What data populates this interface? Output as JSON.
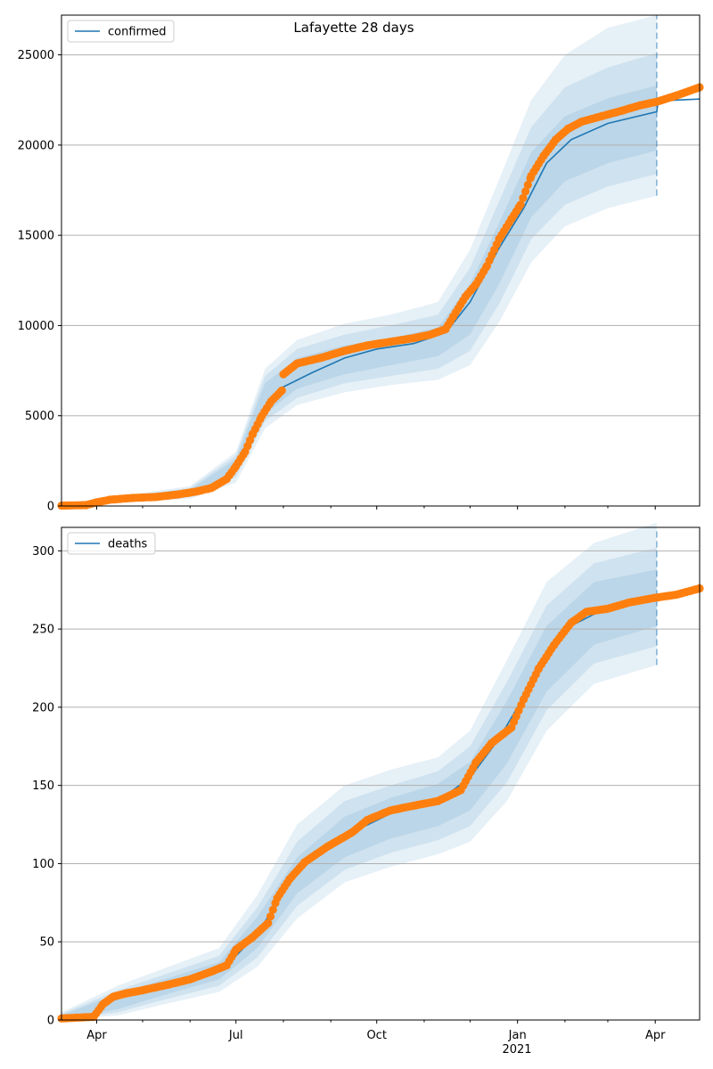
{
  "title": "Lafayette 28 days",
  "colors": {
    "model": "#1f77b4",
    "observed": "#ff7f0e",
    "band": "#1f77b4",
    "grid": "#b0b0b0",
    "forecast_line": "#1f77b4"
  },
  "x_axis": {
    "range": [
      "2020-03-09",
      "2021-04-30"
    ],
    "tick_labels": [
      {
        "date": "2020-04-01",
        "label": "Apr"
      },
      {
        "date": "2020-07-01",
        "label": "Jul"
      },
      {
        "date": "2020-10-01",
        "label": "Oct"
      },
      {
        "date": "2021-01-01",
        "label": "Jan"
      },
      {
        "date": "2021-04-01",
        "label": "Apr"
      }
    ],
    "year_label": {
      "date": "2021-01-01",
      "label": "2021"
    },
    "forecast_start": "2021-04-02"
  },
  "chart_data": [
    {
      "type": "line",
      "panel": "top",
      "legend": "confirmed",
      "legend_position": "top-left",
      "grid": "horizontal",
      "ylim": [
        0,
        27200
      ],
      "yticks": [
        0,
        5000,
        10000,
        15000,
        20000,
        25000
      ],
      "observed": [
        [
          "2020-03-09",
          20
        ],
        [
          "2020-03-25",
          50
        ],
        [
          "2020-04-01",
          200
        ],
        [
          "2020-04-10",
          350
        ],
        [
          "2020-04-25",
          450
        ],
        [
          "2020-05-10",
          500
        ],
        [
          "2020-05-25",
          650
        ],
        [
          "2020-06-05",
          800
        ],
        [
          "2020-06-15",
          1000
        ],
        [
          "2020-06-25",
          1500
        ],
        [
          "2020-07-01",
          2200
        ],
        [
          "2020-07-07",
          3000
        ],
        [
          "2020-07-12",
          4000
        ],
        [
          "2020-07-18",
          5000
        ],
        [
          "2020-07-24",
          5800
        ],
        [
          "2020-07-31",
          6400
        ],
        [
          "2020-08-01",
          7300
        ],
        [
          "2020-08-10",
          7900
        ],
        [
          "2020-08-25",
          8200
        ],
        [
          "2020-09-10",
          8600
        ],
        [
          "2020-09-25",
          8900
        ],
        [
          "2020-10-10",
          9100
        ],
        [
          "2020-10-25",
          9300
        ],
        [
          "2020-11-05",
          9500
        ],
        [
          "2020-11-15",
          9800
        ],
        [
          "2020-11-20",
          10500
        ],
        [
          "2020-11-28",
          11600
        ],
        [
          "2020-12-05",
          12300
        ],
        [
          "2020-12-12",
          13300
        ],
        [
          "2020-12-20",
          14800
        ],
        [
          "2020-12-28",
          15900
        ],
        [
          "2021-01-03",
          16700
        ],
        [
          "2021-01-10",
          18300
        ],
        [
          "2021-01-18",
          19400
        ],
        [
          "2021-01-26",
          20300
        ],
        [
          "2021-02-03",
          20900
        ],
        [
          "2021-02-12",
          21300
        ],
        [
          "2021-02-25",
          21600
        ],
        [
          "2021-03-10",
          21900
        ],
        [
          "2021-03-22",
          22200
        ],
        [
          "2021-04-02",
          22400
        ],
        [
          "2021-04-15",
          22750
        ],
        [
          "2021-04-30",
          23200
        ]
      ],
      "model": [
        [
          "2020-03-09",
          20
        ],
        [
          "2020-04-01",
          200
        ],
        [
          "2020-05-01",
          480
        ],
        [
          "2020-06-01",
          750
        ],
        [
          "2020-06-20",
          1200
        ],
        [
          "2020-07-01",
          2200
        ],
        [
          "2020-07-15",
          4800
        ],
        [
          "2020-08-01",
          6600
        ],
        [
          "2020-08-20",
          7400
        ],
        [
          "2020-09-10",
          8200
        ],
        [
          "2020-10-01",
          8700
        ],
        [
          "2020-10-25",
          9000
        ],
        [
          "2020-11-15",
          9600
        ],
        [
          "2020-12-01",
          11300
        ],
        [
          "2020-12-20",
          14300
        ],
        [
          "2021-01-05",
          16500
        ],
        [
          "2021-01-20",
          19000
        ],
        [
          "2021-02-05",
          20300
        ],
        [
          "2021-03-01",
          21200
        ],
        [
          "2021-04-02",
          21850
        ],
        [
          "2021-04-03",
          22450
        ],
        [
          "2021-04-30",
          22550
        ]
      ],
      "bands": [
        [
          [
            "2020-03-09",
            0,
            100
          ],
          [
            "2020-06-01",
            400,
            1100
          ],
          [
            "2020-07-01",
            1300,
            3000
          ],
          [
            "2020-07-20",
            4300,
            7600
          ],
          [
            "2020-08-10",
            5600,
            9200
          ],
          [
            "2020-09-10",
            6300,
            10100
          ],
          [
            "2020-10-10",
            6700,
            10600
          ],
          [
            "2020-11-10",
            7000,
            11300
          ],
          [
            "2020-12-01",
            7800,
            14200
          ],
          [
            "2020-12-20",
            10200,
            18100
          ],
          [
            "2021-01-10",
            13500,
            22500
          ],
          [
            "2021-02-01",
            15500,
            25000
          ],
          [
            "2021-03-01",
            16500,
            26500
          ],
          [
            "2021-04-02",
            17200,
            27200
          ]
        ],
        [
          [
            "2020-03-09",
            0,
            80
          ],
          [
            "2020-06-01",
            500,
            1000
          ],
          [
            "2020-07-01",
            1600,
            2800
          ],
          [
            "2020-07-20",
            4700,
            7200
          ],
          [
            "2020-08-10",
            6000,
            8700
          ],
          [
            "2020-09-10",
            6800,
            9500
          ],
          [
            "2020-10-10",
            7200,
            10000
          ],
          [
            "2020-11-10",
            7600,
            10600
          ],
          [
            "2020-12-01",
            8600,
            13200
          ],
          [
            "2020-12-20",
            11200,
            16900
          ],
          [
            "2021-01-10",
            14800,
            21000
          ],
          [
            "2021-02-01",
            16700,
            23200
          ],
          [
            "2021-03-01",
            17700,
            24300
          ],
          [
            "2021-04-02",
            18400,
            25100
          ]
        ],
        [
          [
            "2020-03-09",
            0,
            60
          ],
          [
            "2020-06-01",
            600,
            900
          ],
          [
            "2020-07-01",
            1900,
            2600
          ],
          [
            "2020-07-20",
            5100,
            6800
          ],
          [
            "2020-08-10",
            6500,
            8200
          ],
          [
            "2020-09-10",
            7300,
            8900
          ],
          [
            "2020-10-10",
            7800,
            9300
          ],
          [
            "2020-11-10",
            8300,
            9900
          ],
          [
            "2020-12-01",
            9500,
            12300
          ],
          [
            "2020-12-20",
            12300,
            15700
          ],
          [
            "2021-01-10",
            16000,
            19600
          ],
          [
            "2021-02-01",
            18000,
            21600
          ],
          [
            "2021-03-01",
            19000,
            22600
          ],
          [
            "2021-04-02",
            19700,
            23300
          ]
        ]
      ]
    },
    {
      "type": "line",
      "panel": "bottom",
      "legend": "deaths",
      "legend_position": "top-left",
      "grid": "horizontal",
      "ylim": [
        0,
        315
      ],
      "yticks": [
        0,
        50,
        100,
        150,
        200,
        250,
        300
      ],
      "observed": [
        [
          "2020-03-09",
          1
        ],
        [
          "2020-03-30",
          2
        ],
        [
          "2020-04-05",
          10
        ],
        [
          "2020-04-12",
          15
        ],
        [
          "2020-04-20",
          17
        ],
        [
          "2020-05-01",
          19
        ],
        [
          "2020-05-15",
          22
        ],
        [
          "2020-06-01",
          26
        ],
        [
          "2020-06-15",
          31
        ],
        [
          "2020-06-25",
          35
        ],
        [
          "2020-07-01",
          45
        ],
        [
          "2020-07-12",
          53
        ],
        [
          "2020-07-22",
          62
        ],
        [
          "2020-07-28",
          78
        ],
        [
          "2020-08-05",
          90
        ],
        [
          "2020-08-15",
          101
        ],
        [
          "2020-08-30",
          111
        ],
        [
          "2020-09-15",
          120
        ],
        [
          "2020-09-25",
          128
        ],
        [
          "2020-10-10",
          134
        ],
        [
          "2020-10-25",
          137
        ],
        [
          "2020-11-10",
          140
        ],
        [
          "2020-11-25",
          147
        ],
        [
          "2020-12-05",
          165
        ],
        [
          "2020-12-15",
          177
        ],
        [
          "2020-12-28",
          187
        ],
        [
          "2021-01-05",
          205
        ],
        [
          "2021-01-15",
          225
        ],
        [
          "2021-01-25",
          240
        ],
        [
          "2021-02-05",
          254
        ],
        [
          "2021-02-15",
          261
        ],
        [
          "2021-03-01",
          263
        ],
        [
          "2021-03-15",
          267
        ],
        [
          "2021-04-01",
          270
        ],
        [
          "2021-04-15",
          272
        ],
        [
          "2021-04-30",
          276
        ]
      ],
      "model": [
        [
          "2020-03-09",
          1
        ],
        [
          "2020-03-30",
          2
        ],
        [
          "2020-04-10",
          12
        ],
        [
          "2020-05-01",
          19
        ],
        [
          "2020-06-01",
          26
        ],
        [
          "2020-06-25",
          35
        ],
        [
          "2020-07-15",
          55
        ],
        [
          "2020-08-05",
          88
        ],
        [
          "2020-08-25",
          108
        ],
        [
          "2020-09-15",
          120
        ],
        [
          "2020-10-10",
          132
        ],
        [
          "2020-11-10",
          140
        ],
        [
          "2020-12-01",
          155
        ],
        [
          "2020-12-20",
          180
        ],
        [
          "2021-01-10",
          215
        ],
        [
          "2021-02-01",
          250
        ],
        [
          "2021-03-01",
          264
        ],
        [
          "2021-04-02",
          270
        ]
      ],
      "bands": [
        [
          [
            "2020-03-09",
            0,
            5
          ],
          [
            "2020-04-15",
            3,
            22
          ],
          [
            "2020-05-15",
            10,
            33
          ],
          [
            "2020-06-20",
            18,
            46
          ],
          [
            "2020-07-15",
            34,
            80
          ],
          [
            "2020-08-10",
            65,
            125
          ],
          [
            "2020-09-10",
            88,
            150
          ],
          [
            "2020-10-10",
            98,
            160
          ],
          [
            "2020-11-10",
            106,
            168
          ],
          [
            "2020-12-01",
            114,
            185
          ],
          [
            "2020-12-25",
            140,
            230
          ],
          [
            "2021-01-20",
            185,
            280
          ],
          [
            "2021-02-20",
            215,
            305
          ],
          [
            "2021-04-02",
            227,
            318
          ]
        ],
        [
          [
            "2020-03-09",
            0,
            4
          ],
          [
            "2020-04-15",
            5,
            19
          ],
          [
            "2020-05-15",
            13,
            29
          ],
          [
            "2020-06-20",
            22,
            41
          ],
          [
            "2020-07-15",
            40,
            72
          ],
          [
            "2020-08-10",
            73,
            114
          ],
          [
            "2020-09-10",
            96,
            140
          ],
          [
            "2020-10-10",
            107,
            150
          ],
          [
            "2020-11-10",
            115,
            159
          ],
          [
            "2020-12-01",
            124,
            175
          ],
          [
            "2020-12-25",
            152,
            216
          ],
          [
            "2021-01-20",
            198,
            265
          ],
          [
            "2021-02-20",
            228,
            292
          ],
          [
            "2021-04-02",
            239,
            302
          ]
        ],
        [
          [
            "2020-03-09",
            0,
            3
          ],
          [
            "2020-04-15",
            7,
            17
          ],
          [
            "2020-05-15",
            16,
            26
          ],
          [
            "2020-06-20",
            26,
            37
          ],
          [
            "2020-07-15",
            46,
            66
          ],
          [
            "2020-08-10",
            81,
            104
          ],
          [
            "2020-09-10",
            104,
            130
          ],
          [
            "2020-10-10",
            116,
            142
          ],
          [
            "2020-11-10",
            124,
            151
          ],
          [
            "2020-12-01",
            134,
            165
          ],
          [
            "2020-12-25",
            164,
            204
          ],
          [
            "2021-01-20",
            210,
            252
          ],
          [
            "2021-02-20",
            240,
            280
          ],
          [
            "2021-04-02",
            252,
            288
          ]
        ]
      ]
    }
  ]
}
